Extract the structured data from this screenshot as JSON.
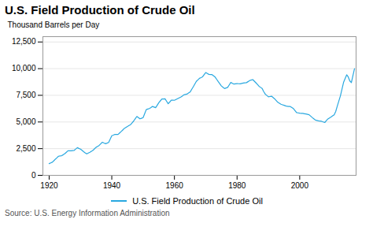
{
  "chart_data": {
    "type": "line",
    "title": "U.S. Field Production of Crude Oil",
    "ylabel": "Thousand Barrels per Day",
    "caption": "Source: U.S. Energy Information Administration",
    "x": [
      1920,
      1920.5,
      1921,
      1921.5,
      1922,
      1922.5,
      1923,
      1923.5,
      1924,
      1924.5,
      1925,
      1925.5,
      1926,
      1926.5,
      1927,
      1927.5,
      1928,
      1928.5,
      1929,
      1929.5,
      1930,
      1930.5,
      1931,
      1931.5,
      1932,
      1932.5,
      1933,
      1933.5,
      1934,
      1934.5,
      1935,
      1935.5,
      1936,
      1936.5,
      1937,
      1937.5,
      1938,
      1938.5,
      1939,
      1939.5,
      1940,
      1940.5,
      1941,
      1941.5,
      1942,
      1942.5,
      1943,
      1943.5,
      1944,
      1944.5,
      1945,
      1945.5,
      1946,
      1946.5,
      1947,
      1947.5,
      1948,
      1948.5,
      1949,
      1949.5,
      1950,
      1950.5,
      1951,
      1951.5,
      1952,
      1952.5,
      1953,
      1953.5,
      1954,
      1954.5,
      1955,
      1955.5,
      1956,
      1956.5,
      1957,
      1957.5,
      1958,
      1958.5,
      1959,
      1959.5,
      1960,
      1960.5,
      1961,
      1961.5,
      1962,
      1962.5,
      1963,
      1963.5,
      1964,
      1964.5,
      1965,
      1965.5,
      1966,
      1966.5,
      1967,
      1967.5,
      1968,
      1968.5,
      1969,
      1969.5,
      1970,
      1970.5,
      1971,
      1971.5,
      1972,
      1972.5,
      1973,
      1973.5,
      1974,
      1974.5,
      1975,
      1975.5,
      1976,
      1976.5,
      1977,
      1977.5,
      1978,
      1978.5,
      1979,
      1979.5,
      1980,
      1980.5,
      1981,
      1981.5,
      1982,
      1982.5,
      1983,
      1983.5,
      1984,
      1984.5,
      1985,
      1985.5,
      1986,
      1986.5,
      1987,
      1987.5,
      1988,
      1988.5,
      1989,
      1989.5,
      1990,
      1990.5,
      1991,
      1991.5,
      1992,
      1992.5,
      1993,
      1993.5,
      1994,
      1994.5,
      1995,
      1995.5,
      1996,
      1996.5,
      1997,
      1997.5,
      1998,
      1998.5,
      1999,
      1999.5,
      2000,
      2000.5,
      2001,
      2001.5,
      2002,
      2002.5,
      2003,
      2003.5,
      2004,
      2004.5,
      2005,
      2005.5,
      2006,
      2006.5,
      2007,
      2007.5,
      2008,
      2008.5,
      2009,
      2009.5,
      2010,
      2010.5,
      2011,
      2011.5,
      2012,
      2012.5,
      2013,
      2013.5,
      2014,
      2014.5,
      2015,
      2015.5,
      2016,
      2016.5,
      2017,
      2017.5
    ],
    "series": [
      {
        "name": "U.S. Field Production of Crude Oil",
        "color": "#29a8e0",
        "values": [
          1097,
          1160,
          1226,
          1370,
          1518,
          1650,
          1793,
          1815,
          1838,
          1930,
          2028,
          2160,
          2295,
          2300,
          2303,
          2320,
          2340,
          2465,
          2593,
          2520,
          2456,
          2340,
          2218,
          2110,
          2011,
          2085,
          2163,
          2250,
          2340,
          2490,
          2632,
          2720,
          2815,
          2960,
          3101,
          3030,
          2965,
          3020,
          3080,
          3390,
          3707,
          3770,
          3841,
          3836,
          3832,
          3969,
          4106,
          4250,
          4399,
          4490,
          4585,
          4665,
          4747,
          4920,
          5097,
          5310,
          5520,
          5410,
          5296,
          5350,
          5407,
          5780,
          6158,
          6210,
          6258,
          6355,
          6457,
          6400,
          6341,
          6570,
          6807,
          6980,
          7151,
          7160,
          7170,
          6940,
          6710,
          6870,
          7044,
          7040,
          7035,
          7110,
          7185,
          7260,
          7331,
          7420,
          7542,
          7580,
          7614,
          7710,
          7804,
          8050,
          8295,
          8550,
          8810,
          8950,
          9096,
          9165,
          9239,
          9438,
          9637,
          9550,
          9463,
          9452,
          9441,
          9325,
          9208,
          8990,
          8775,
          8575,
          8375,
          8255,
          8132,
          8188,
          8245,
          8476,
          8707,
          8630,
          8553,
          8575,
          8597,
          8585,
          8572,
          8610,
          8649,
          8668,
          8688,
          8780,
          8879,
          8925,
          8971,
          8826,
          8680,
          8515,
          8349,
          8245,
          8140,
          7850,
          7613,
          7485,
          7355,
          7386,
          7417,
          7294,
          7171,
          7010,
          6847,
          6755,
          6662,
          6611,
          6560,
          6512,
          6465,
          6458,
          6452,
          6352,
          6252,
          6067,
          5881,
          5851,
          5822,
          5812,
          5801,
          5774,
          5746,
          5714,
          5681,
          5550,
          5421,
          5299,
          5178,
          5140,
          5102,
          5083,
          5064,
          5007,
          4950,
          5118,
          5286,
          5378,
          5471,
          5572,
          5673,
          5985,
          6497,
          6970,
          7454,
          8081,
          8709,
          9065,
          9420,
          9218,
          8844,
          8697,
          9352,
          10000
        ]
      }
    ],
    "xlim": [
      1918,
      2018
    ],
    "xticks": [
      1920,
      1940,
      1960,
      1980,
      2000
    ],
    "ylim": [
      0,
      13000
    ],
    "yticks": [
      0,
      {
        "value": 2500,
        "label": "2,500"
      },
      {
        "value": 5000,
        "label": "5,000"
      },
      {
        "value": 7500,
        "label": "7,500"
      },
      {
        "value": 10000,
        "label": "10,000"
      },
      {
        "value": 12500,
        "label": "12,500"
      }
    ],
    "grid": true,
    "legend": "bottom"
  }
}
